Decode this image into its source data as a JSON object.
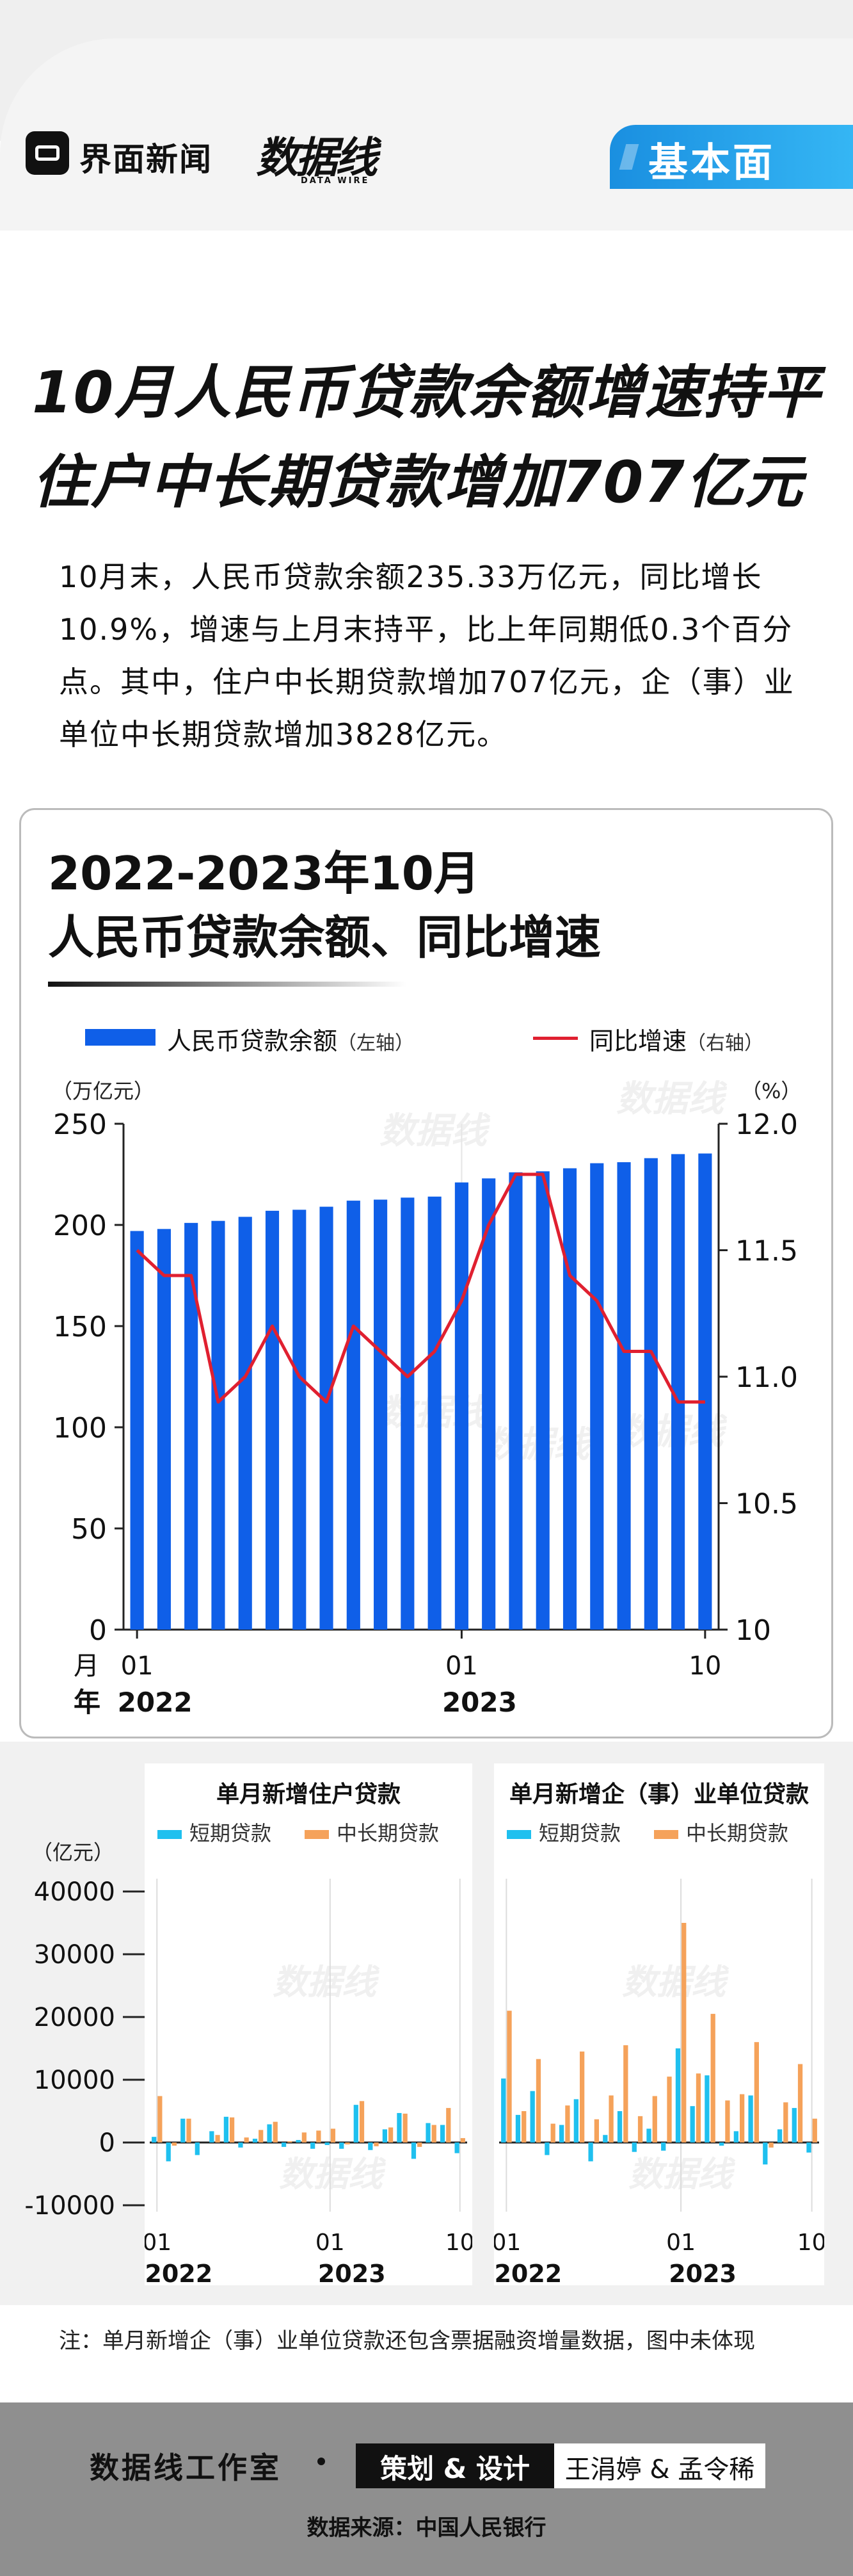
{
  "header": {
    "brand": "界面新闻",
    "datawire_main": "数据线",
    "datawire_sub": "DATA WIRE",
    "badge": "基本面"
  },
  "title": {
    "line1": "10月人民币贷款余额增速持平",
    "line2": "住户中长期贷款增加707亿元"
  },
  "lead": "10月末，人民币贷款余额235.33万亿元，同比增长10.9%，增速与上月末持平，比上年同期低0.3个百分点。其中，住户中长期贷款增加707亿元，企（事）业单位中长期贷款增加3828亿元。",
  "watermark": "数据线",
  "main_chart": {
    "title_line1": "2022-2023年10月",
    "title_line2": "人民币贷款余额、同比增速",
    "legend_bar": "人民币贷款余额",
    "legend_bar_note": "（左轴）",
    "legend_line": "同比增速",
    "legend_line_note": "（右轴）",
    "left_unit": "（万亿元）",
    "right_unit": "（%）",
    "x_unit_month": "月",
    "x_unit_year": "年",
    "colors": {
      "bar": "#0f5fe8",
      "line": "#e02030"
    }
  },
  "chart_data": [
    {
      "type": "bar",
      "title": "2022-2023年10月 人民币贷款余额、同比增速",
      "categories": [
        "2022-01",
        "2022-02",
        "2022-03",
        "2022-04",
        "2022-05",
        "2022-06",
        "2022-07",
        "2022-08",
        "2022-09",
        "2022-10",
        "2022-11",
        "2022-12",
        "2023-01",
        "2023-02",
        "2023-03",
        "2023-04",
        "2023-05",
        "2023-06",
        "2023-07",
        "2023-08",
        "2023-09",
        "2023-10"
      ],
      "x_tick_labels": [
        {
          "category": "2022-01",
          "month": "01",
          "year": "2022"
        },
        {
          "category": "2023-01",
          "month": "01",
          "year": "2023"
        },
        {
          "category": "2023-10",
          "month": "10",
          "year": ""
        }
      ],
      "series": [
        {
          "name": "人民币贷款余额",
          "axis": "left",
          "type": "bar",
          "values": [
            197.0,
            198.0,
            201.0,
            202.0,
            204.0,
            207.0,
            207.5,
            209.0,
            212.0,
            212.5,
            213.5,
            214.0,
            221.0,
            223.0,
            226.0,
            226.5,
            228.0,
            230.5,
            231.0,
            233.0,
            235.0,
            235.3
          ]
        },
        {
          "name": "同比增速",
          "axis": "right",
          "type": "line",
          "values": [
            11.5,
            11.4,
            11.4,
            10.9,
            11.0,
            11.2,
            11.0,
            10.9,
            11.2,
            11.1,
            11.0,
            11.1,
            11.3,
            11.6,
            11.8,
            11.8,
            11.4,
            11.3,
            11.1,
            11.1,
            10.9,
            10.9
          ]
        }
      ],
      "left_axis": {
        "label": "（万亿元）",
        "ylim": [
          0,
          250
        ],
        "ticks": [
          0,
          50,
          100,
          150,
          200,
          250
        ]
      },
      "right_axis": {
        "label": "（%）",
        "ylim": [
          10,
          12
        ],
        "ticks": [
          "10",
          "10.5",
          "11.0",
          "11.5",
          "12.0"
        ]
      },
      "grid": false,
      "legend": "top"
    },
    {
      "type": "bar",
      "title": "单月新增住户贷款",
      "ylabel": "（亿元）",
      "ylim": [
        -10000,
        40000
      ],
      "ticks": [
        -10000,
        0,
        10000,
        20000,
        30000,
        40000
      ],
      "categories": [
        "2022-01",
        "2022-02",
        "2022-03",
        "2022-04",
        "2022-05",
        "2022-06",
        "2022-07",
        "2022-08",
        "2022-09",
        "2022-10",
        "2022-11",
        "2022-12",
        "2023-01",
        "2023-02",
        "2023-03",
        "2023-04",
        "2023-05",
        "2023-06",
        "2023-07",
        "2023-08",
        "2023-09",
        "2023-10"
      ],
      "x_tick_labels": [
        {
          "category": "2022-01",
          "month": "01",
          "year": "2022"
        },
        {
          "category": "2023-01",
          "month": "01",
          "year": "2023"
        },
        {
          "category": "2023-10",
          "month": "10",
          "year": ""
        }
      ],
      "series": [
        {
          "name": "短期贷款",
          "values": [
            900,
            -3000,
            3800,
            -2000,
            1800,
            4100,
            -800,
            600,
            2900,
            -700,
            400,
            -1000,
            -400,
            -1000,
            6000,
            -1200,
            2100,
            4700,
            -2600,
            3100,
            2800,
            -1700
          ]
        },
        {
          "name": "中长期贷款",
          "values": [
            7400,
            -500,
            3800,
            0,
            1200,
            4000,
            800,
            2000,
            3300,
            200,
            1600,
            1900,
            2200,
            -300,
            6600,
            -600,
            2400,
            4600,
            -700,
            2800,
            5500,
            700
          ]
        }
      ],
      "colors": {
        "短期贷款": "#1fc0ef",
        "中长期贷款": "#f5a25a"
      },
      "grid": "vertical",
      "legend": "top"
    },
    {
      "type": "bar",
      "title": "单月新增企（事）业单位贷款",
      "ylim": [
        -10000,
        40000
      ],
      "categories": [
        "2022-01",
        "2022-02",
        "2022-03",
        "2022-04",
        "2022-05",
        "2022-06",
        "2022-07",
        "2022-08",
        "2022-09",
        "2022-10",
        "2022-11",
        "2022-12",
        "2023-01",
        "2023-02",
        "2023-03",
        "2023-04",
        "2023-05",
        "2023-06",
        "2023-07",
        "2023-08",
        "2023-09",
        "2023-10"
      ],
      "x_tick_labels": [
        {
          "category": "2022-01",
          "month": "01",
          "year": "2022"
        },
        {
          "category": "2023-01",
          "month": "01",
          "year": "2023"
        },
        {
          "category": "2023-10",
          "month": "10",
          "year": ""
        }
      ],
      "series": [
        {
          "name": "短期贷款",
          "values": [
            10200,
            4400,
            8200,
            -2000,
            2800,
            6900,
            -3000,
            1200,
            5000,
            -1500,
            2200,
            -1300,
            15000,
            5800,
            10700,
            -500,
            1800,
            7500,
            -3500,
            2100,
            5500,
            -1600
          ]
        },
        {
          "name": "中长期贷款",
          "values": [
            21000,
            5000,
            13300,
            3000,
            5900,
            14500,
            3700,
            7500,
            15500,
            4200,
            7400,
            10500,
            35000,
            11000,
            20500,
            6700,
            7700,
            16000,
            -800,
            6400,
            12500,
            3800
          ]
        }
      ],
      "colors": {
        "短期贷款": "#1fc0ef",
        "中长期贷款": "#f5a25a"
      },
      "grid": "vertical",
      "legend": "top"
    }
  ],
  "small_charts": {
    "left_title": "单月新增住户贷款",
    "right_title": "单月新增企（事）业单位贷款",
    "unit": "（亿元）",
    "legend_short": "短期贷款",
    "legend_long": "中长期贷款"
  },
  "note": "注：单月新增企（事）业单位贷款还包含票据融资增量数据，图中未体现",
  "footer": {
    "studio": "数据线工作室",
    "role": "策划 & 设计",
    "names": "王涓婷 & 孟令稀",
    "source": "数据来源：中国人民银行"
  }
}
